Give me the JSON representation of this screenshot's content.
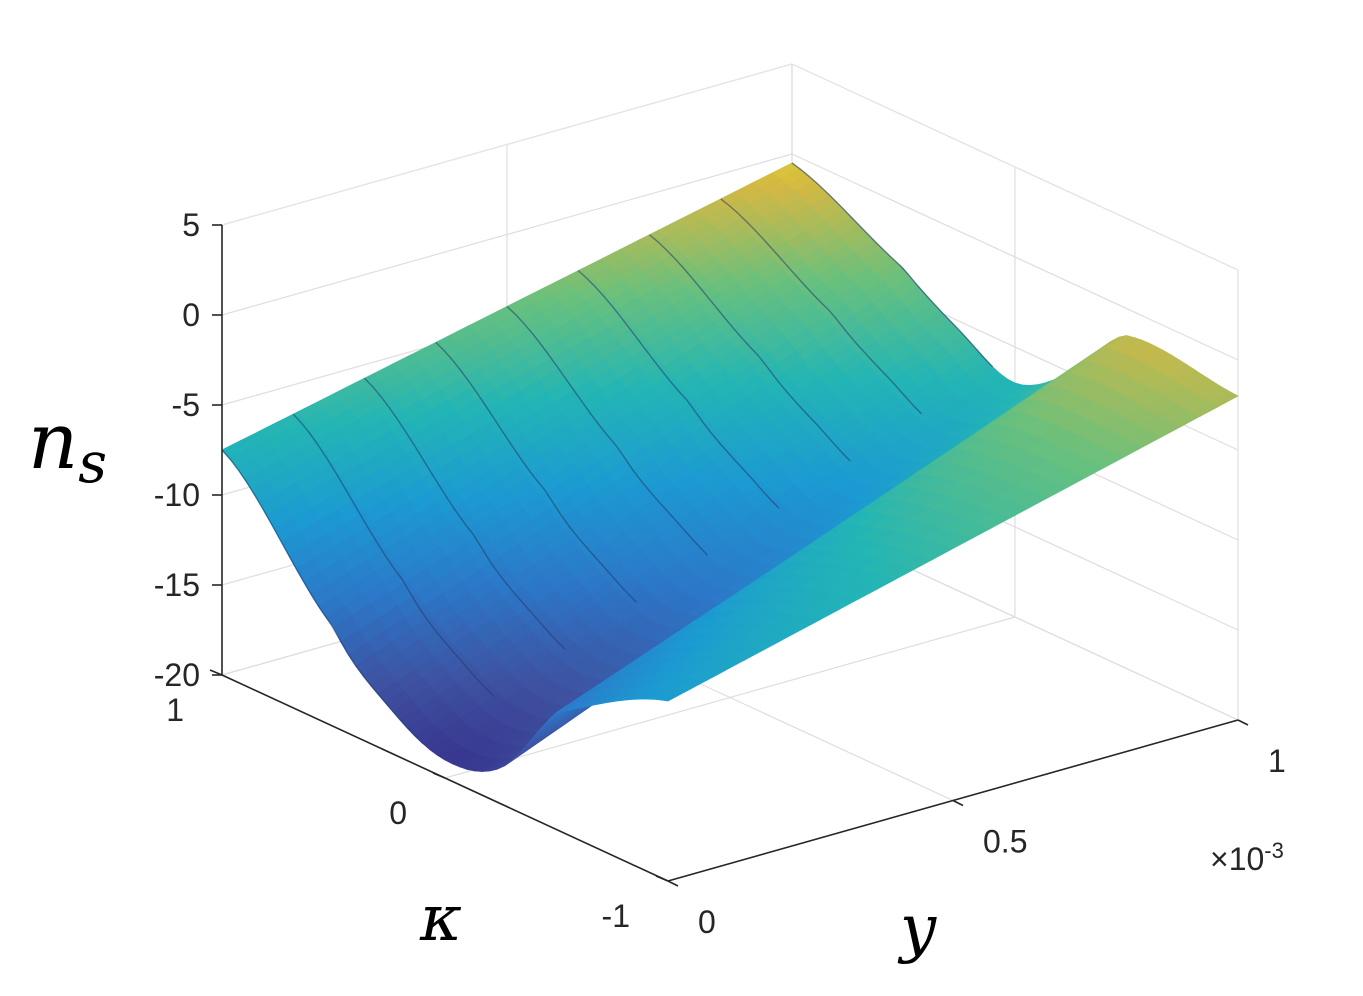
{
  "chart_data": {
    "type": "surface",
    "title": "",
    "xlabel": "y",
    "ylabel": "κ",
    "zlabel": "n",
    "zlabel_sub": "s",
    "x_exponent": "×10",
    "x_exponent_power": "-3",
    "xlim": [
      0,
      0.001
    ],
    "ylim": [
      -1,
      1
    ],
    "zlim": [
      -20,
      5
    ],
    "xticks": [
      {
        "value": 0,
        "label": "0"
      },
      {
        "value": 0.0005,
        "label": "0.5"
      },
      {
        "value": 0.001,
        "label": "1"
      }
    ],
    "yticks": [
      {
        "value": -1,
        "label": "-1"
      },
      {
        "value": 0,
        "label": "0"
      },
      {
        "value": 1,
        "label": "1"
      }
    ],
    "zticks": [
      {
        "value": 5,
        "label": "5"
      },
      {
        "value": 0,
        "label": "0"
      },
      {
        "value": -5,
        "label": "-5"
      },
      {
        "value": -10,
        "label": "-10"
      },
      {
        "value": -15,
        "label": "-15"
      },
      {
        "value": -20,
        "label": "-20"
      }
    ],
    "grid": true,
    "colormap": "parula",
    "surface_samples": {
      "kappa": [
        1,
        0.5,
        0.25,
        0,
        -0.25,
        -0.5,
        -1
      ],
      "y": [
        0,
        0.001
      ],
      "z_at_y0": [
        -7.5,
        -14.5,
        -17.5,
        -19.0,
        -18.0,
        -13.5,
        -10.0
      ],
      "z_at_y1": [
        -0.5,
        -3.5,
        -5.5,
        -7.0,
        -5.0,
        -1.5,
        -2.0
      ]
    }
  }
}
